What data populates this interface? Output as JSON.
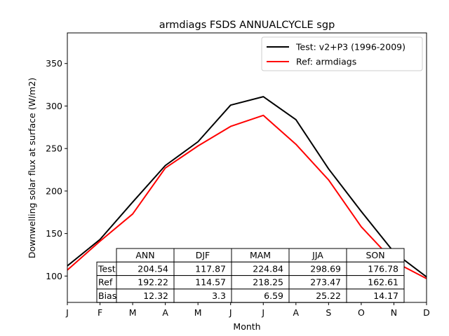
{
  "chart_data": {
    "type": "line",
    "title": "armdiags FSDS ANNUALCYCLE sgp",
    "xlabel": "Month",
    "ylabel": "Downwelling solar flux at surface (W/m2)",
    "categories": [
      "J",
      "F",
      "M",
      "A",
      "M",
      "J",
      "J",
      "A",
      "S",
      "O",
      "N",
      "D"
    ],
    "ylim": [
      69,
      386
    ],
    "yticks": [
      100,
      150,
      200,
      250,
      300,
      350
    ],
    "legend_position": "top-right",
    "series": [
      {
        "name": "Test: v2+P3 (1996-2009)",
        "color": "#000000",
        "values": [
          112,
          143,
          187,
          230,
          258,
          301,
          311,
          284,
          226,
          176,
          128,
          99
        ]
      },
      {
        "name": "Ref: armdiags",
        "color": "#ff0000",
        "values": [
          107,
          141,
          173,
          227,
          253,
          276,
          289,
          255,
          213,
          158,
          117,
          97
        ]
      }
    ],
    "table": {
      "columns": [
        "ANN",
        "DJF",
        "MAM",
        "JJA",
        "SON"
      ],
      "rows": [
        {
          "label": "Test",
          "values": [
            "204.54",
            "117.87",
            "224.84",
            "298.69",
            "176.78"
          ]
        },
        {
          "label": "Ref",
          "values": [
            "192.22",
            "114.57",
            "218.25",
            "273.47",
            "162.61"
          ]
        },
        {
          "label": "Bias",
          "values": [
            "12.32",
            "3.3",
            "6.59",
            "25.22",
            "14.17"
          ]
        }
      ]
    }
  }
}
